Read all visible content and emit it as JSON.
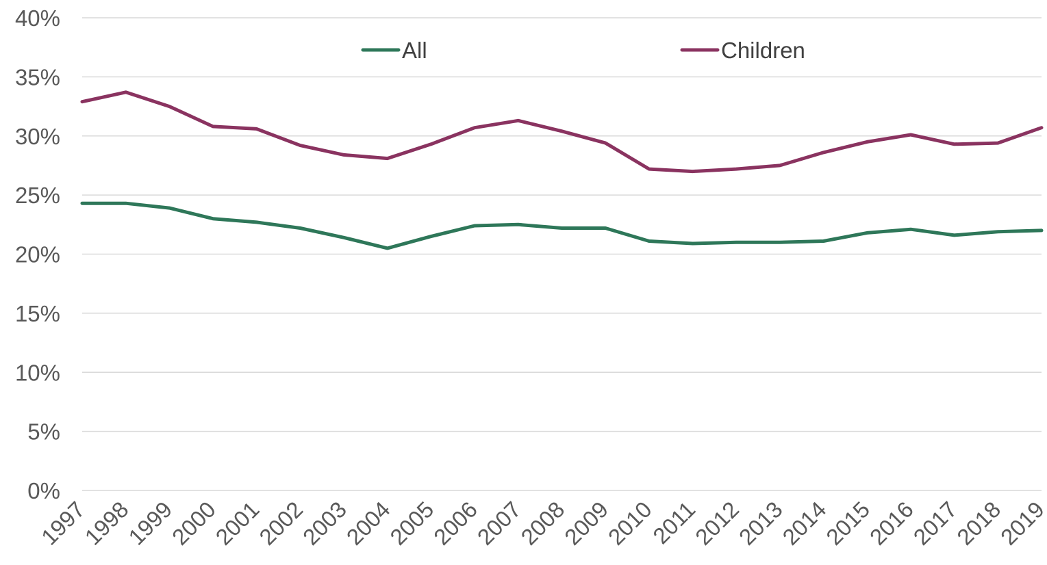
{
  "chart_data": {
    "type": "line",
    "title": "",
    "xlabel": "",
    "ylabel": "",
    "ylim": [
      0,
      40
    ],
    "y_tick_values": [
      0,
      5,
      10,
      15,
      20,
      25,
      30,
      35,
      40
    ],
    "y_tick_labels": [
      "0%",
      "5%",
      "10%",
      "15%",
      "20%",
      "25%",
      "30%",
      "35%",
      "40%"
    ],
    "categories": [
      "1997",
      "1998",
      "1999",
      "2000",
      "2001",
      "2002",
      "2003",
      "2004",
      "2005",
      "2006",
      "2007",
      "2008",
      "2009",
      "2010",
      "2011",
      "2012",
      "2013",
      "2014",
      "2015",
      "2016",
      "2017",
      "2018",
      "2019"
    ],
    "grid": true,
    "legend_position": "top",
    "series": [
      {
        "name": "All",
        "color": "#2e7759",
        "values": [
          24.3,
          24.3,
          23.9,
          23.0,
          22.7,
          22.2,
          21.4,
          20.5,
          21.5,
          22.4,
          22.5,
          22.2,
          22.2,
          21.1,
          20.9,
          21.0,
          21.0,
          21.1,
          21.8,
          22.1,
          21.6,
          21.9,
          22.0
        ]
      },
      {
        "name": "Children",
        "color": "#8a3360",
        "values": [
          32.9,
          33.7,
          32.5,
          30.8,
          30.6,
          29.2,
          28.4,
          28.1,
          29.3,
          30.7,
          31.3,
          30.4,
          29.4,
          27.2,
          27.0,
          27.2,
          27.5,
          28.6,
          29.5,
          30.1,
          29.3,
          29.4,
          30.7
        ]
      }
    ]
  }
}
